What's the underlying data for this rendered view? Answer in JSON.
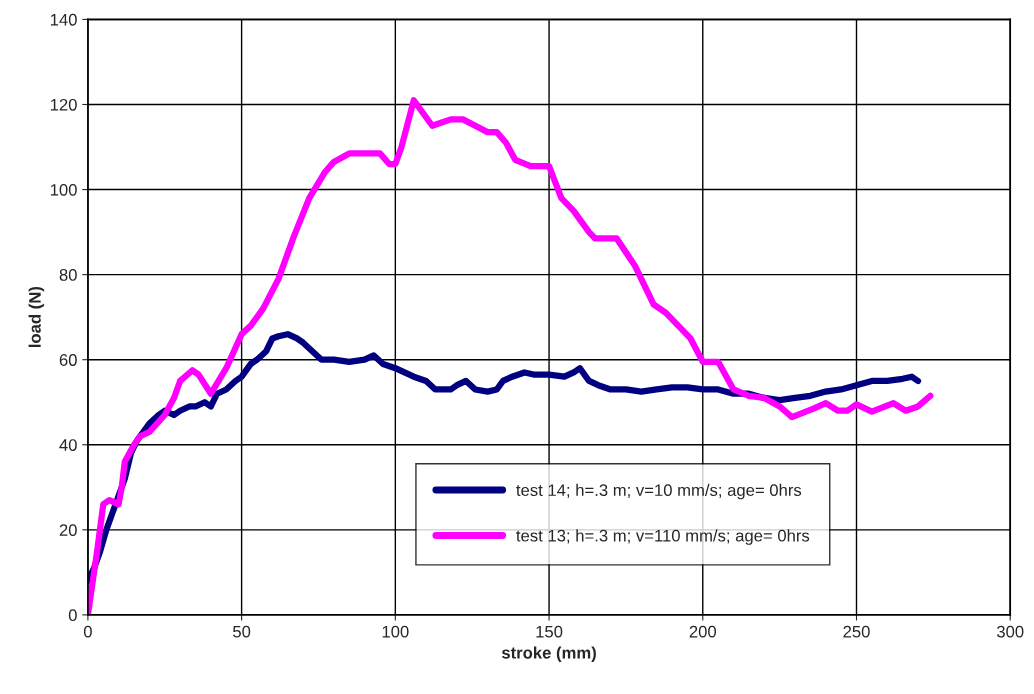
{
  "chart_data": {
    "type": "line",
    "xlabel": "stroke (mm)",
    "ylabel": "load (N)",
    "xlim": [
      0,
      300
    ],
    "ylim": [
      0,
      140
    ],
    "xticks": [
      0,
      50,
      100,
      150,
      200,
      250,
      300
    ],
    "yticks": [
      0,
      20,
      40,
      60,
      80,
      100,
      120,
      140
    ],
    "grid": true,
    "legend": "bottom",
    "marker": "none",
    "line_style": "solid",
    "series": [
      {
        "name": "test 14; h=.3 m; v=10 mm/s; age= 0hrs",
        "color": "#000080",
        "x": [
          0,
          2,
          4,
          6,
          8,
          10,
          12,
          14,
          16,
          18,
          20,
          23,
          25,
          28,
          30,
          33,
          35,
          38,
          40,
          42,
          45,
          48,
          50,
          53,
          55,
          58,
          60,
          62,
          65,
          68,
          70,
          73,
          76,
          80,
          85,
          90,
          93,
          96,
          100,
          103,
          106,
          110,
          113,
          118,
          120,
          123,
          126,
          130,
          133,
          135,
          138,
          142,
          145,
          150,
          155,
          158,
          160,
          163,
          166,
          170,
          175,
          180,
          185,
          190,
          195,
          200,
          205,
          210,
          215,
          220,
          225,
          230,
          235,
          240,
          245,
          250,
          255,
          260,
          265,
          268,
          270
        ],
        "values": [
          8,
          11,
          15,
          20,
          24,
          28,
          32,
          38,
          41,
          43,
          45,
          47,
          48,
          47,
          48,
          49,
          49,
          50,
          49,
          52,
          53,
          55,
          56,
          59,
          60,
          62,
          65,
          65.5,
          66,
          65,
          64,
          62,
          60,
          60,
          59.5,
          60,
          61,
          59,
          58,
          57,
          56,
          55,
          53,
          53,
          54,
          55,
          53,
          52.5,
          53,
          55,
          56,
          57,
          56.5,
          56.5,
          56,
          57,
          58,
          55,
          54,
          53,
          53,
          52.5,
          53,
          53.5,
          53.5,
          53,
          53,
          52,
          52,
          51,
          50.5,
          51,
          51.5,
          52.5,
          53,
          54,
          55,
          55,
          55.5,
          56,
          55
        ]
      },
      {
        "name": "test 13; h=.3 m; v=110 mm/s; age= 0hrs",
        "color": "#ff00ff",
        "x": [
          0,
          3,
          5,
          7,
          10,
          11,
          12,
          15,
          17,
          20,
          25,
          28,
          30,
          34,
          36,
          40,
          45,
          50,
          53,
          57,
          62,
          67,
          72,
          77,
          80,
          85,
          95,
          98,
          100,
          102,
          106,
          110,
          112,
          118,
          122,
          126,
          130,
          133,
          136,
          139,
          144,
          150,
          154,
          158,
          163,
          165,
          172,
          178,
          184,
          188,
          192,
          196,
          200,
          205,
          210,
          215,
          220,
          225,
          229,
          236,
          240,
          244,
          247,
          250,
          255,
          262,
          266,
          270,
          274
        ],
        "values": [
          0,
          15,
          26,
          27,
          26,
          30,
          36,
          40,
          42,
          43,
          47,
          51,
          55,
          57.5,
          56.5,
          52,
          58,
          66,
          68,
          72,
          79,
          89,
          98,
          104,
          106.5,
          108.5,
          108.5,
          106,
          106,
          110,
          121,
          117,
          115,
          116.5,
          116.5,
          115,
          113.5,
          113.5,
          111,
          107,
          105.5,
          105.5,
          98,
          95,
          90,
          88.5,
          88.5,
          82,
          73,
          71,
          68,
          65,
          59.5,
          59.5,
          53,
          51.5,
          51,
          49,
          46.5,
          48.5,
          49.8,
          48,
          48,
          49.5,
          47.8,
          49.8,
          48,
          49,
          51.5
        ]
      }
    ]
  }
}
